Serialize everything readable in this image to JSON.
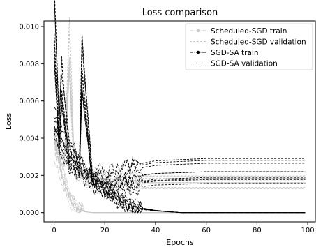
{
  "chart_data": {
    "type": "line",
    "title": "Loss comparison",
    "xlabel": "Epochs",
    "ylabel": "Loss",
    "xlim": [
      -4,
      103
    ],
    "ylim": [
      -0.0005,
      0.0103
    ],
    "x_ticks": [
      0,
      20,
      40,
      60,
      80,
      100
    ],
    "y_ticks": [
      0.0,
      0.002,
      0.004,
      0.006,
      0.008,
      0.01
    ],
    "x_tick_labels": [
      "0",
      "20",
      "40",
      "60",
      "80",
      "100"
    ],
    "y_tick_labels": [
      "0.000",
      "0.002",
      "0.004",
      "0.006",
      "0.008",
      "0.010"
    ],
    "grid": false,
    "legend_position": "top-right",
    "series": [
      {
        "name": "Scheduled-SGD train",
        "color": "#c8c8c8",
        "style": "dashdot-marker",
        "representative": {
          "x": [
            0,
            2,
            4,
            6,
            8,
            10,
            12,
            15,
            20,
            30,
            50,
            75,
            100
          ],
          "y": [
            0.0038,
            0.0025,
            0.0016,
            0.0009,
            0.0004,
            0.00015,
            5e-05,
            0.0,
            0.0,
            0.0,
            0.0,
            0.0,
            0.0
          ]
        }
      },
      {
        "name": "Scheduled-SGD validation",
        "color": "#c8c8c8",
        "style": "dashed",
        "representative": {
          "x": [
            0,
            2,
            4,
            6,
            8,
            10,
            12,
            15,
            20,
            30,
            50,
            75,
            100
          ],
          "y": [
            0.004,
            0.0032,
            0.0026,
            0.0082,
            0.0022,
            0.002,
            0.0019,
            0.0017,
            0.0016,
            0.0016,
            0.0016,
            0.0016,
            0.0016
          ]
        }
      },
      {
        "name": "SGD-SA train",
        "color": "#000000",
        "style": "dashdot-marker",
        "representative": {
          "x": [
            0,
            3,
            6,
            10,
            15,
            20,
            25,
            30,
            35,
            40,
            50,
            75,
            100
          ],
          "y": [
            0.0045,
            0.0038,
            0.003,
            0.0025,
            0.0018,
            0.0012,
            0.0007,
            0.0004,
            0.0002,
            0.0001,
            0.0,
            0.0,
            0.0
          ]
        }
      },
      {
        "name": "SGD-SA validation",
        "color": "#000000",
        "style": "dashed",
        "representative": {
          "x": [
            0,
            2,
            3,
            6,
            10,
            11,
            15,
            20,
            30,
            40,
            60,
            80,
            100
          ],
          "y": [
            0.0098,
            0.004,
            0.0066,
            0.003,
            0.0025,
            0.0078,
            0.0018,
            0.0016,
            0.0019,
            0.0021,
            0.0022,
            0.0022,
            0.0022
          ]
        }
      }
    ]
  }
}
